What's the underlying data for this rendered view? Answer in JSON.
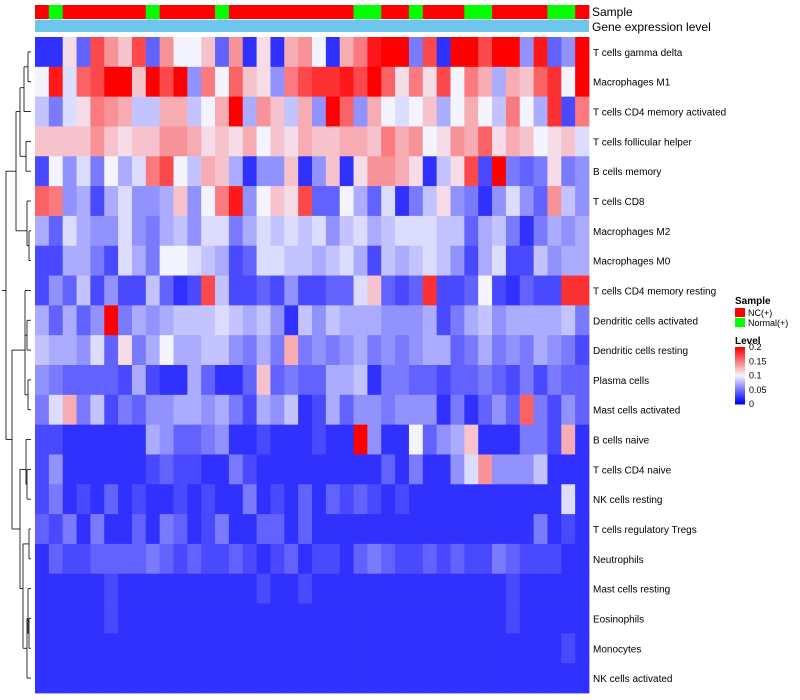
{
  "chart_data": {
    "type": "heatmap",
    "title": "",
    "annotations": [
      {
        "name": "Sample",
        "colors_by_column": "columns.group"
      },
      {
        "name": "Gene expression level",
        "color": "#6ec6ee"
      }
    ],
    "columns": {
      "count": 40,
      "group": [
        "NC(+)",
        "Normal(+)",
        "NC(+)",
        "NC(+)",
        "NC(+)",
        "NC(+)",
        "NC(+)",
        "NC(+)",
        "Normal(+)",
        "NC(+)",
        "NC(+)",
        "NC(+)",
        "NC(+)",
        "Normal(+)",
        "NC(+)",
        "NC(+)",
        "NC(+)",
        "NC(+)",
        "NC(+)",
        "NC(+)",
        "NC(+)",
        "NC(+)",
        "NC(+)",
        "Normal(+)",
        "Normal(+)",
        "NC(+)",
        "NC(+)",
        "Normal(+)",
        "NC(+)",
        "NC(+)",
        "NC(+)",
        "Normal(+)",
        "Normal(+)",
        "NC(+)",
        "NC(+)",
        "NC(+)",
        "NC(+)",
        "Normal(+)",
        "Normal(+)",
        "NC(+)"
      ]
    },
    "rows": [
      "T cells gamma delta",
      "Macrophages M1",
      "T cells CD4 memory activated",
      "T cells follicular helper",
      "B cells memory",
      "T cells CD8",
      "Macrophages M2",
      "Macrophages M0",
      "T cells CD4 memory resting",
      "Dendritic cells activated",
      "Dendritic cells resting",
      "Plasma cells",
      "Mast cells activated",
      "B cells naive",
      "T cells CD4 naive",
      "NK cells resting",
      "T cells regulatory  Tregs",
      "Neutrophils",
      "Mast cells resting",
      "Eosinophils",
      "Monocytes",
      "NK cells activated"
    ],
    "values": [
      [
        0.02,
        0.02,
        0.11,
        0.04,
        0.17,
        0.14,
        0.12,
        0.17,
        0.04,
        0.14,
        0.1,
        0.1,
        0.12,
        0.04,
        0.14,
        0.02,
        0.11,
        0.02,
        0.13,
        0.14,
        0.1,
        0.02,
        0.13,
        0.15,
        0.19,
        0.2,
        0.2,
        0.05,
        0.17,
        0.02,
        0.2,
        0.2,
        0.17,
        0.2,
        0.2,
        0.06,
        0.19,
        0.04,
        0.06,
        0.2
      ],
      [
        0.1,
        0.19,
        0.09,
        0.16,
        0.17,
        0.2,
        0.2,
        0.12,
        0.2,
        0.17,
        0.2,
        0.06,
        0.15,
        0.1,
        0.16,
        0.12,
        0.11,
        0.06,
        0.15,
        0.17,
        0.18,
        0.18,
        0.19,
        0.17,
        0.2,
        0.16,
        0.11,
        0.15,
        0.11,
        0.17,
        0.1,
        0.15,
        0.13,
        0.07,
        0.13,
        0.12,
        0.16,
        0.18,
        0.1,
        0.2
      ],
      [
        0.08,
        0.05,
        0.09,
        0.11,
        0.15,
        0.14,
        0.13,
        0.08,
        0.08,
        0.13,
        0.13,
        0.08,
        0.1,
        0.13,
        0.2,
        0.07,
        0.14,
        0.12,
        0.08,
        0.13,
        0.06,
        0.2,
        0.16,
        0.06,
        0.13,
        0.1,
        0.09,
        0.1,
        0.12,
        0.07,
        0.1,
        0.13,
        0.1,
        0.08,
        0.15,
        0.1,
        0.07,
        0.18,
        0.03,
        0.15
      ],
      [
        0.12,
        0.12,
        0.12,
        0.12,
        0.14,
        0.12,
        0.11,
        0.12,
        0.12,
        0.14,
        0.14,
        0.13,
        0.11,
        0.12,
        0.11,
        0.13,
        0.1,
        0.12,
        0.11,
        0.13,
        0.12,
        0.12,
        0.13,
        0.13,
        0.12,
        0.15,
        0.13,
        0.14,
        0.1,
        0.11,
        0.14,
        0.13,
        0.16,
        0.11,
        0.13,
        0.12,
        0.1,
        0.11,
        0.12,
        0.09
      ],
      [
        0.03,
        0.1,
        0.06,
        0.09,
        0.05,
        0.1,
        0.07,
        0.09,
        0.15,
        0.17,
        0.1,
        0.08,
        0.13,
        0.12,
        0.07,
        0.02,
        0.06,
        0.06,
        0.12,
        0.02,
        0.06,
        0.12,
        0.02,
        0.11,
        0.14,
        0.14,
        0.13,
        0.11,
        0.02,
        0.08,
        0.11,
        0.17,
        0.03,
        0.2,
        0.05,
        0.04,
        0.05,
        0.11,
        0.05,
        0.06
      ],
      [
        0.16,
        0.15,
        0.06,
        0.07,
        0.03,
        0.07,
        0.09,
        0.06,
        0.06,
        0.07,
        0.12,
        0.06,
        0.1,
        0.15,
        0.19,
        0.06,
        0.1,
        0.12,
        0.11,
        0.17,
        0.04,
        0.04,
        0.1,
        0.07,
        0.04,
        0.09,
        0.02,
        0.05,
        0.08,
        0.11,
        0.06,
        0.05,
        0.02,
        0.06,
        0.09,
        0.06,
        0.04,
        0.14,
        0.08,
        0.06
      ],
      [
        0.07,
        0.04,
        0.09,
        0.07,
        0.06,
        0.06,
        0.09,
        0.06,
        0.05,
        0.07,
        0.08,
        0.06,
        0.09,
        0.09,
        0.05,
        0.07,
        0.09,
        0.08,
        0.09,
        0.08,
        0.09,
        0.06,
        0.08,
        0.09,
        0.07,
        0.08,
        0.09,
        0.09,
        0.09,
        0.08,
        0.08,
        0.04,
        0.07,
        0.08,
        0.05,
        0.02,
        0.05,
        0.07,
        0.06,
        0.07
      ],
      [
        0.03,
        0.03,
        0.07,
        0.07,
        0.05,
        0.03,
        0.09,
        0.07,
        0.05,
        0.1,
        0.1,
        0.09,
        0.08,
        0.07,
        0.03,
        0.04,
        0.09,
        0.09,
        0.08,
        0.08,
        0.07,
        0.08,
        0.09,
        0.07,
        0.03,
        0.08,
        0.07,
        0.08,
        0.09,
        0.08,
        0.06,
        0.03,
        0.07,
        0.09,
        0.03,
        0.03,
        0.08,
        0.06,
        0.07,
        0.07
      ],
      [
        0.03,
        0.06,
        0.04,
        0.08,
        0.03,
        0.06,
        0.03,
        0.03,
        0.08,
        0.04,
        0.02,
        0.03,
        0.17,
        0.08,
        0.03,
        0.03,
        0.04,
        0.03,
        0.06,
        0.03,
        0.03,
        0.04,
        0.04,
        0.09,
        0.12,
        0.04,
        0.03,
        0.04,
        0.18,
        0.03,
        0.03,
        0.04,
        0.1,
        0.03,
        0.02,
        0.04,
        0.03,
        0.03,
        0.18,
        0.18
      ],
      [
        0.07,
        0.04,
        0.07,
        0.04,
        0.06,
        0.2,
        0.05,
        0.07,
        0.06,
        0.07,
        0.08,
        0.08,
        0.08,
        0.09,
        0.08,
        0.07,
        0.08,
        0.06,
        0.02,
        0.08,
        0.06,
        0.08,
        0.07,
        0.07,
        0.07,
        0.06,
        0.06,
        0.06,
        0.07,
        0.03,
        0.05,
        0.07,
        0.08,
        0.06,
        0.07,
        0.07,
        0.07,
        0.07,
        0.08,
        0.05
      ],
      [
        0.08,
        0.07,
        0.07,
        0.06,
        0.09,
        0.04,
        0.11,
        0.05,
        0.07,
        0.1,
        0.07,
        0.07,
        0.08,
        0.08,
        0.06,
        0.05,
        0.07,
        0.05,
        0.13,
        0.05,
        0.06,
        0.05,
        0.06,
        0.07,
        0.05,
        0.06,
        0.05,
        0.06,
        0.07,
        0.07,
        0.04,
        0.05,
        0.07,
        0.05,
        0.06,
        0.05,
        0.07,
        0.06,
        0.05,
        0.03
      ],
      [
        0.06,
        0.05,
        0.04,
        0.04,
        0.04,
        0.04,
        0.03,
        0.07,
        0.03,
        0.02,
        0.02,
        0.07,
        0.04,
        0.02,
        0.02,
        0.04,
        0.12,
        0.04,
        0.05,
        0.04,
        0.04,
        0.07,
        0.07,
        0.08,
        0.02,
        0.05,
        0.05,
        0.04,
        0.04,
        0.03,
        0.04,
        0.04,
        0.05,
        0.04,
        0.03,
        0.05,
        0.03,
        0.05,
        0.04,
        0.04
      ],
      [
        0.05,
        0.09,
        0.13,
        0.05,
        0.08,
        0.03,
        0.05,
        0.04,
        0.06,
        0.06,
        0.07,
        0.07,
        0.06,
        0.07,
        0.05,
        0.03,
        0.07,
        0.06,
        0.08,
        0.02,
        0.03,
        0.07,
        0.04,
        0.06,
        0.06,
        0.05,
        0.06,
        0.06,
        0.06,
        0.02,
        0.05,
        0.02,
        0.04,
        0.06,
        0.04,
        0.16,
        0.05,
        0.03,
        0.06,
        0.04
      ],
      [
        0.03,
        0.03,
        0.02,
        0.02,
        0.02,
        0.02,
        0.02,
        0.02,
        0.07,
        0.06,
        0.04,
        0.04,
        0.05,
        0.06,
        0.02,
        0.02,
        0.03,
        0.02,
        0.02,
        0.02,
        0.03,
        0.02,
        0.02,
        0.2,
        0.06,
        0.02,
        0.02,
        0.1,
        0.04,
        0.06,
        0.07,
        0.12,
        0.02,
        0.02,
        0.02,
        0.05,
        0.05,
        0.03,
        0.13,
        0.02
      ],
      [
        0.03,
        0.06,
        0.02,
        0.02,
        0.02,
        0.02,
        0.02,
        0.02,
        0.03,
        0.04,
        0.03,
        0.03,
        0.02,
        0.02,
        0.05,
        0.03,
        0.02,
        0.02,
        0.02,
        0.02,
        0.02,
        0.02,
        0.02,
        0.02,
        0.02,
        0.04,
        0.02,
        0.05,
        0.02,
        0.02,
        0.06,
        0.09,
        0.14,
        0.06,
        0.06,
        0.06,
        0.08,
        0.02,
        0.02,
        0.02
      ],
      [
        0.03,
        0.05,
        0.02,
        0.03,
        0.02,
        0.04,
        0.02,
        0.03,
        0.02,
        0.02,
        0.03,
        0.02,
        0.03,
        0.02,
        0.02,
        0.05,
        0.02,
        0.03,
        0.02,
        0.04,
        0.02,
        0.04,
        0.03,
        0.04,
        0.03,
        0.02,
        0.03,
        0.02,
        0.02,
        0.02,
        0.02,
        0.02,
        0.02,
        0.02,
        0.02,
        0.02,
        0.02,
        0.02,
        0.09,
        0.02
      ],
      [
        0.04,
        0.03,
        0.05,
        0.02,
        0.05,
        0.02,
        0.02,
        0.04,
        0.02,
        0.05,
        0.04,
        0.02,
        0.03,
        0.05,
        0.02,
        0.02,
        0.04,
        0.04,
        0.02,
        0.04,
        0.02,
        0.02,
        0.02,
        0.02,
        0.02,
        0.02,
        0.02,
        0.02,
        0.02,
        0.02,
        0.02,
        0.02,
        0.02,
        0.02,
        0.02,
        0.02,
        0.05,
        0.02,
        0.03,
        0.02
      ],
      [
        0.02,
        0.04,
        0.03,
        0.03,
        0.04,
        0.04,
        0.04,
        0.04,
        0.05,
        0.04,
        0.03,
        0.04,
        0.03,
        0.03,
        0.04,
        0.03,
        0.02,
        0.03,
        0.04,
        0.02,
        0.03,
        0.03,
        0.02,
        0.04,
        0.05,
        0.04,
        0.03,
        0.03,
        0.04,
        0.03,
        0.04,
        0.03,
        0.03,
        0.05,
        0.04,
        0.03,
        0.03,
        0.03,
        0.02,
        0.02
      ],
      [
        0.02,
        0.02,
        0.02,
        0.02,
        0.02,
        0.03,
        0.02,
        0.02,
        0.02,
        0.02,
        0.02,
        0.02,
        0.02,
        0.02,
        0.02,
        0.02,
        0.03,
        0.02,
        0.02,
        0.03,
        0.02,
        0.02,
        0.02,
        0.02,
        0.02,
        0.02,
        0.02,
        0.02,
        0.02,
        0.02,
        0.02,
        0.02,
        0.02,
        0.02,
        0.03,
        0.02,
        0.02,
        0.02,
        0.02,
        0.02
      ],
      [
        0.02,
        0.02,
        0.02,
        0.02,
        0.02,
        0.03,
        0.02,
        0.02,
        0.02,
        0.02,
        0.02,
        0.02,
        0.02,
        0.02,
        0.02,
        0.02,
        0.02,
        0.02,
        0.02,
        0.02,
        0.02,
        0.02,
        0.02,
        0.02,
        0.02,
        0.02,
        0.02,
        0.02,
        0.02,
        0.02,
        0.02,
        0.02,
        0.02,
        0.02,
        0.03,
        0.02,
        0.02,
        0.02,
        0.02,
        0.02
      ],
      [
        0.02,
        0.02,
        0.02,
        0.02,
        0.02,
        0.02,
        0.02,
        0.02,
        0.02,
        0.02,
        0.02,
        0.02,
        0.02,
        0.02,
        0.02,
        0.02,
        0.02,
        0.02,
        0.02,
        0.02,
        0.02,
        0.02,
        0.02,
        0.02,
        0.02,
        0.02,
        0.02,
        0.02,
        0.02,
        0.02,
        0.02,
        0.02,
        0.02,
        0.02,
        0.02,
        0.02,
        0.02,
        0.02,
        0.03,
        0.02
      ],
      [
        0.02,
        0.02,
        0.02,
        0.02,
        0.02,
        0.02,
        0.02,
        0.02,
        0.02,
        0.02,
        0.02,
        0.02,
        0.02,
        0.02,
        0.02,
        0.02,
        0.02,
        0.02,
        0.02,
        0.02,
        0.02,
        0.02,
        0.02,
        0.02,
        0.02,
        0.02,
        0.02,
        0.02,
        0.02,
        0.02,
        0.02,
        0.02,
        0.02,
        0.02,
        0.02,
        0.02,
        0.02,
        0.02,
        0.02,
        0.02
      ]
    ],
    "legend": {
      "sample": {
        "title": "Sample",
        "entries": [
          {
            "label": "NC(+)",
            "color": "#ff0000"
          },
          {
            "label": "Normal(+)",
            "color": "#00ff00"
          }
        ]
      },
      "level": {
        "title": "Level",
        "ticks": [
          0.2,
          0.15,
          0.1,
          0.05,
          0
        ],
        "range": [
          0,
          0.2
        ],
        "low_color": "#0000ff",
        "mid_color": "#f4f4ff",
        "high_color": "#ff0000",
        "mid_value": 0.1
      }
    },
    "dendrogram": "rows"
  }
}
